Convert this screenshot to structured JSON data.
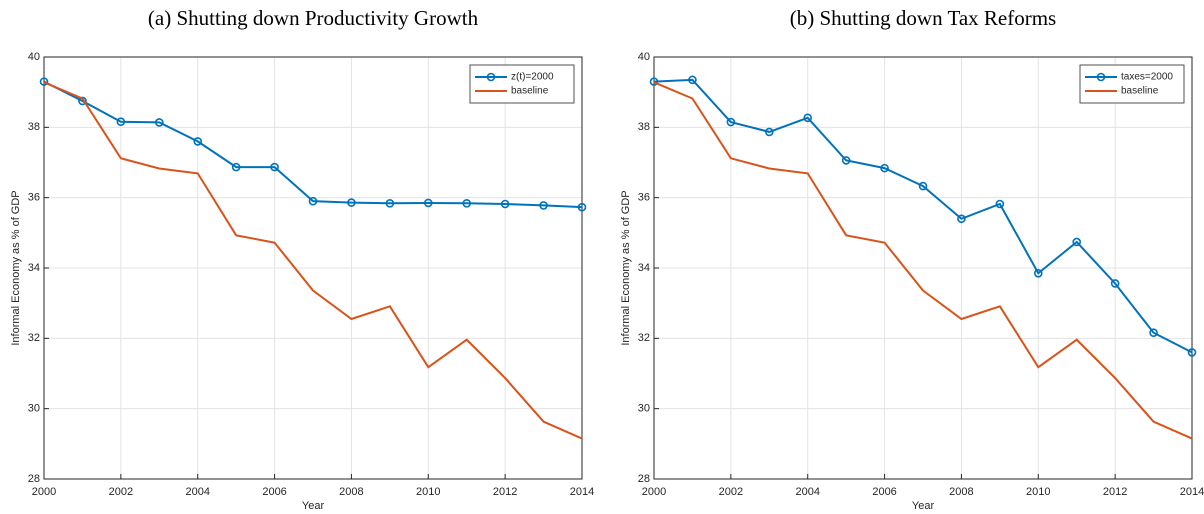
{
  "chart_data": [
    {
      "type": "line",
      "title": "(a) Shutting down Productivity Growth",
      "xlabel": "Year",
      "ylabel": "Informal Economy as % of GDP",
      "x": [
        2000,
        2001,
        2002,
        2003,
        2004,
        2005,
        2006,
        2007,
        2008,
        2009,
        2010,
        2011,
        2012,
        2013,
        2014
      ],
      "xlim": [
        2000,
        2014
      ],
      "xticks": [
        2000,
        2002,
        2004,
        2006,
        2008,
        2010,
        2012,
        2014
      ],
      "ylim": [
        28,
        40
      ],
      "yticks": [
        28,
        30,
        32,
        34,
        36,
        38,
        40
      ],
      "grid": true,
      "legend": "upper right",
      "series": [
        {
          "name": "z(t)=2000",
          "color": "#0072bd",
          "marker": "circle",
          "values": [
            39.3,
            38.75,
            38.16,
            38.14,
            37.6,
            36.87,
            36.87,
            35.9,
            35.86,
            35.84,
            35.85,
            35.84,
            35.82,
            35.78,
            35.73
          ]
        },
        {
          "name": "baseline",
          "color": "#d95319",
          "values": [
            39.28,
            38.82,
            37.12,
            36.83,
            36.69,
            34.93,
            34.72,
            33.36,
            32.55,
            32.91,
            31.18,
            31.96,
            30.87,
            29.63,
            29.15
          ]
        }
      ]
    },
    {
      "type": "line",
      "title": "(b) Shutting down Tax Reforms",
      "xlabel": "Year",
      "ylabel": "Informal Economy as % of GDP",
      "x": [
        2000,
        2001,
        2002,
        2003,
        2004,
        2005,
        2006,
        2007,
        2008,
        2009,
        2010,
        2011,
        2012,
        2013,
        2014
      ],
      "xlim": [
        2000,
        2014
      ],
      "xticks": [
        2000,
        2002,
        2004,
        2006,
        2008,
        2010,
        2012,
        2014
      ],
      "ylim": [
        28,
        40
      ],
      "yticks": [
        28,
        30,
        32,
        34,
        36,
        38,
        40
      ],
      "grid": true,
      "legend": "upper right",
      "series": [
        {
          "name": "taxes=2000",
          "color": "#0072bd",
          "marker": "circle",
          "values": [
            39.3,
            39.35,
            38.15,
            37.87,
            38.27,
            37.06,
            36.84,
            36.33,
            35.4,
            35.82,
            33.85,
            34.74,
            33.56,
            32.16,
            31.6
          ]
        },
        {
          "name": "baseline",
          "color": "#d95319",
          "values": [
            39.28,
            38.82,
            37.12,
            36.83,
            36.69,
            34.93,
            34.72,
            33.36,
            32.55,
            32.91,
            31.18,
            31.96,
            30.87,
            29.63,
            29.15
          ]
        }
      ]
    }
  ]
}
